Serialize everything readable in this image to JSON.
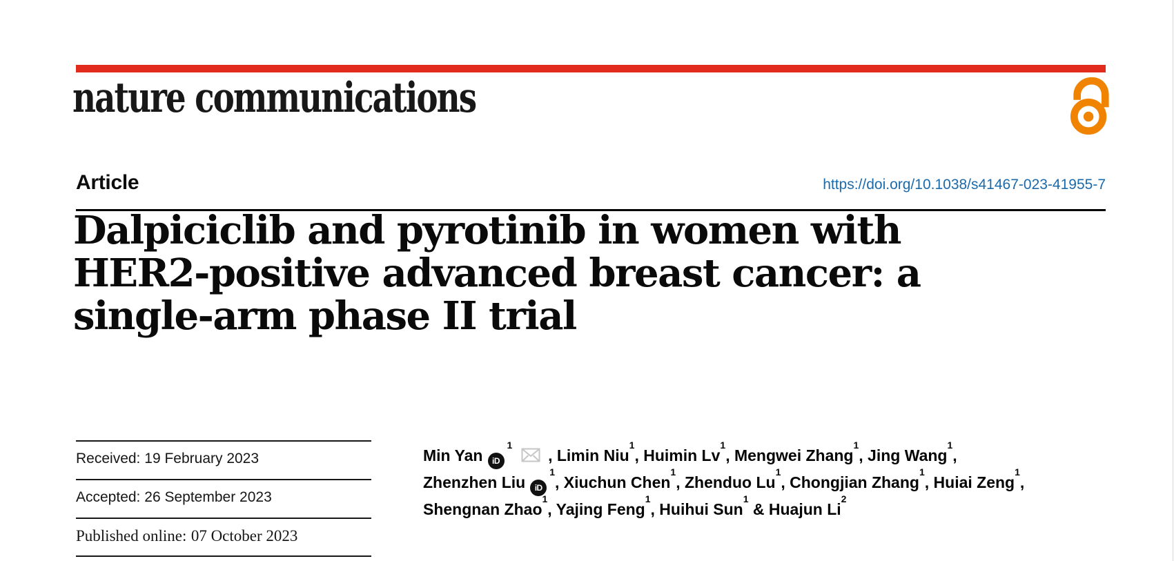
{
  "colors": {
    "accent_red": "#e22b1d",
    "open_access_orange": "#f08300",
    "link_blue": "#1b6aac",
    "text_black": "#121212",
    "envelope_gray": "#c6c6c6",
    "page_edge_gray": "#d8d8d8"
  },
  "brand": {
    "logo_text": "nature communications",
    "open_access_icon": "open-lock-icon"
  },
  "header": {
    "article_label": "Article",
    "doi_url": "https://doi.org/10.1038/s41467-023-41955-7"
  },
  "title": {
    "full": "Dalpiciclib and pyrotinib in women with HER2-positive advanced breast cancer: a single-arm phase II trial",
    "lines": [
      "Dalpiciclib and pyrotinib in women with",
      "HER2-positive advanced breast cancer: a",
      "single-arm phase II trial"
    ]
  },
  "dates": {
    "rows": [
      {
        "label": "Received:",
        "value": "19 February 2023"
      },
      {
        "label": "Accepted:",
        "value": "26 September 2023"
      },
      {
        "label": "Published online:",
        "value": "07 October 2023"
      }
    ]
  },
  "authors": {
    "orcid_label": "iD",
    "lines": [
      [
        {
          "t": "Min Yan"
        },
        {
          "icon": "orcid"
        },
        {
          "sup": "1"
        },
        {
          "icon": "envelope"
        },
        {
          "t": ", Limin Niu"
        },
        {
          "sup": "1"
        },
        {
          "t": ", Huimin Lv"
        },
        {
          "sup": "1"
        },
        {
          "t": ", Mengwei Zhang"
        },
        {
          "sup": "1"
        },
        {
          "t": ", Jing Wang"
        },
        {
          "sup": "1"
        },
        {
          "t": ","
        }
      ],
      [
        {
          "t": "Zhenzhen Liu"
        },
        {
          "icon": "orcid"
        },
        {
          "sup": "1"
        },
        {
          "t": ", Xiuchun Chen"
        },
        {
          "sup": "1"
        },
        {
          "t": ", Zhenduo Lu"
        },
        {
          "sup": "1"
        },
        {
          "t": ", Chongjian Zhang"
        },
        {
          "sup": "1"
        },
        {
          "t": ", Huiai Zeng"
        },
        {
          "sup": "1"
        },
        {
          "t": ","
        }
      ],
      [
        {
          "t": "Shengnan Zhao"
        },
        {
          "sup": "1"
        },
        {
          "t": ", Yajing Feng"
        },
        {
          "sup": "1"
        },
        {
          "t": ", Huihui Sun"
        },
        {
          "sup": "1"
        },
        {
          "t": " & Huajun Li"
        },
        {
          "sup": "2"
        }
      ]
    ]
  }
}
